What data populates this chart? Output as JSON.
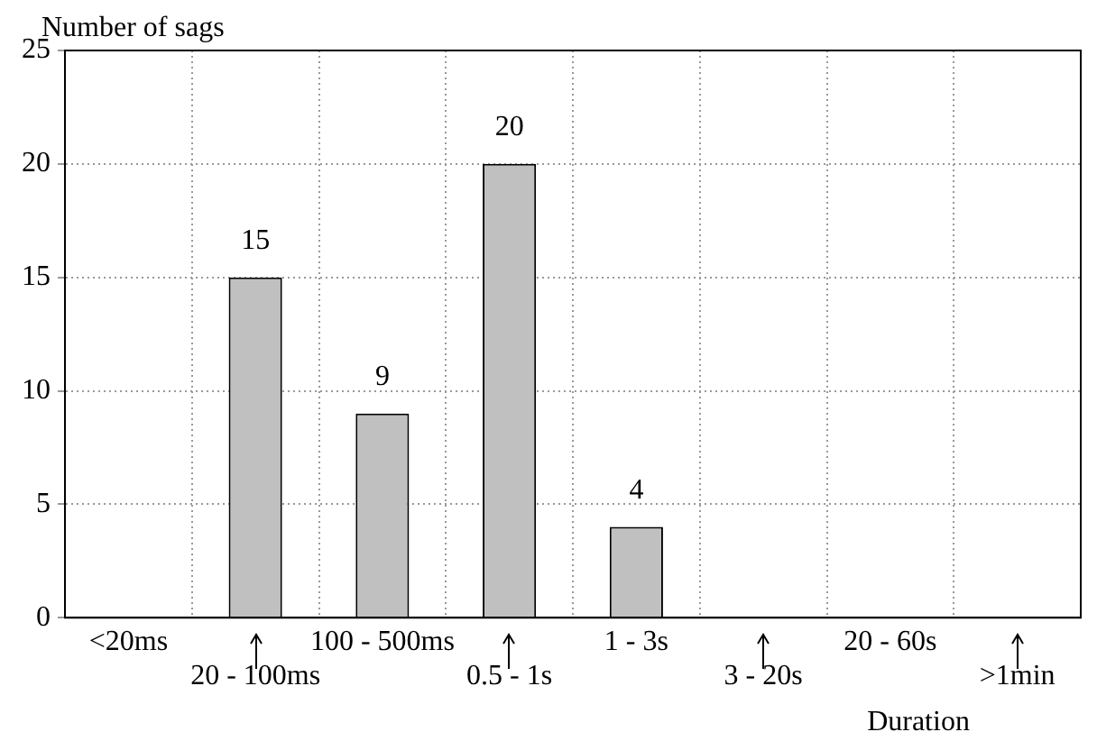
{
  "chart_data": {
    "type": "bar",
    "xlabel": "Duration",
    "ylabel": "Number of sags",
    "categories": [
      "<20ms",
      "20 - 100ms",
      "100 - 500ms",
      "0.5 - 1s",
      "1 - 3s",
      "3 - 20s",
      "20 - 60s",
      ">1min"
    ],
    "values": [
      0,
      15,
      9,
      20,
      4,
      0,
      0,
      0
    ],
    "value_labels": [
      null,
      "15",
      "9",
      "20",
      "4",
      null,
      null,
      null
    ],
    "color": "#c0c0c0",
    "ylim": [
      0,
      25
    ],
    "yticks": [
      0,
      5,
      10,
      15,
      20,
      25
    ],
    "grid": true,
    "legend": false
  }
}
